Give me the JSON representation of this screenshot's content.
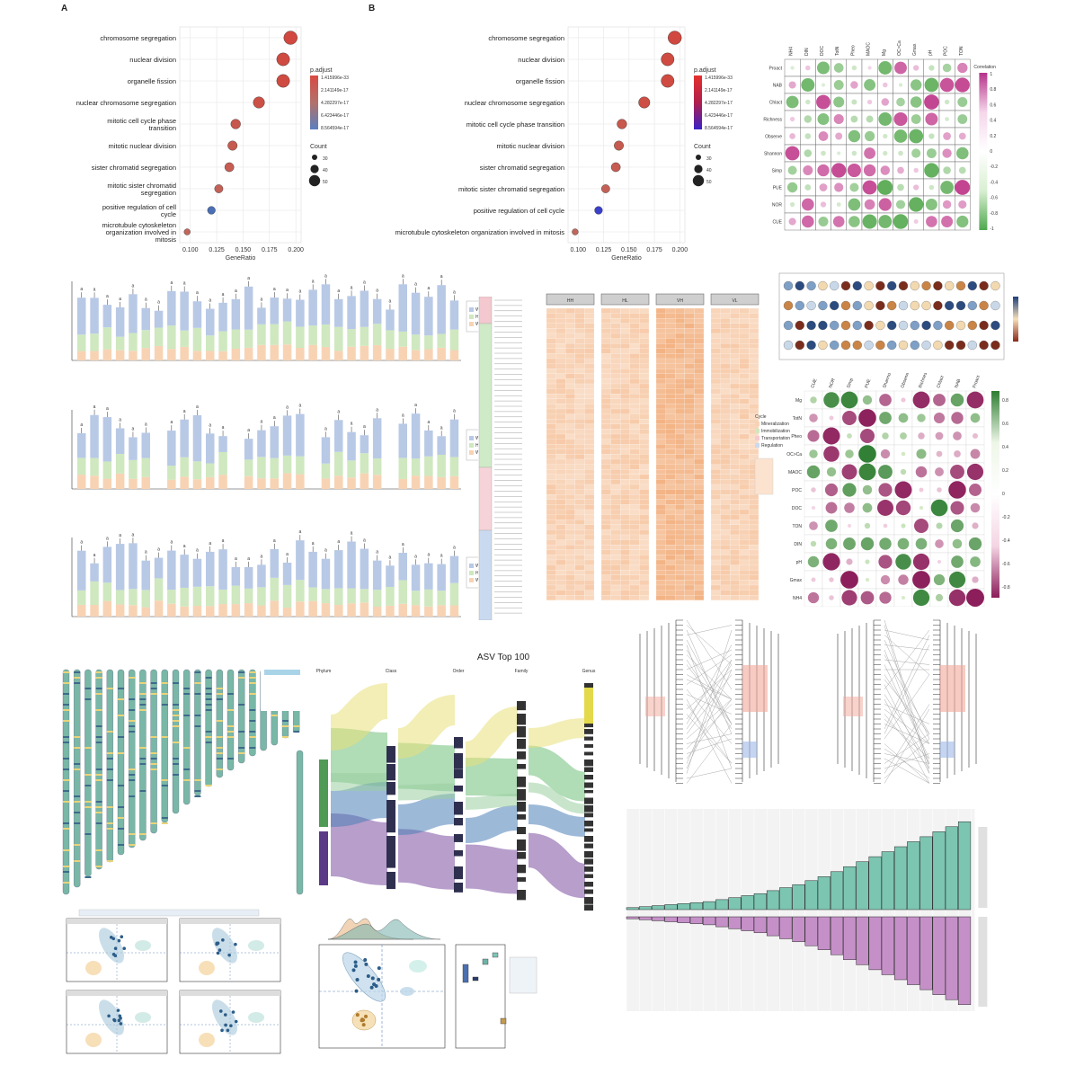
{
  "panels": {
    "a_letter": "A",
    "b_letter": "B"
  },
  "chart_data": [
    {
      "type": "scatter",
      "panel": "A",
      "categories": [
        "chromosome segregation",
        "nuclear division",
        "organelle fission",
        "nuclear chromosome segregation",
        "mitotic cell cycle phase transition",
        "mitotic nuclear division",
        "sister chromatid segregation",
        "mitotic sister chromatid segregation",
        "positive regulation of cell cycle",
        "microtubule cytoskeleton organization involved in mitosis"
      ],
      "category_lines": [
        [
          "chromosome segregation"
        ],
        [
          "nuclear division"
        ],
        [
          "organelle fission"
        ],
        [
          "nuclear chromosome segregation"
        ],
        [
          "mitotic cell cycle phase",
          "transition"
        ],
        [
          "mitotic nuclear division"
        ],
        [
          "sister chromatid segregation"
        ],
        [
          "mitotic sister chromatid",
          "segregation"
        ],
        [
          "positive regulation of cell",
          "cycle"
        ],
        [
          "microtubule cytoskeleton",
          "organization involved in",
          "mitosis"
        ]
      ],
      "x": [
        0.195,
        0.188,
        0.188,
        0.165,
        0.143,
        0.14,
        0.137,
        0.127,
        0.12,
        0.097
      ],
      "count": [
        55,
        53,
        53,
        47,
        41,
        40,
        39,
        36,
        34,
        28
      ],
      "p_color": [
        0.0,
        0.05,
        0.05,
        0.15,
        0.3,
        0.35,
        0.4,
        0.5,
        0.95,
        0.6
      ],
      "xlabel": "GeneRatio",
      "xticks": [
        "0.100",
        "0.125",
        "0.150",
        "0.175",
        "0.200"
      ],
      "xlim": [
        0.09,
        0.205
      ],
      "legend_p_title": "p.adjust",
      "legend_p": [
        "1.415996e-33",
        "2.141149e-17",
        "4.282297e-17",
        "6.423446e-17",
        "8.564594e-17"
      ],
      "legend_count_title": "Count",
      "legend_count": [
        "30",
        "40",
        "50"
      ]
    },
    {
      "type": "scatter",
      "panel": "B",
      "categories": [
        "chromosome segregation",
        "nuclear division",
        "organelle fission",
        "nuclear chromosome segregation",
        "mitotic cell cycle phase transition",
        "mitotic nuclear division",
        "sister chromatid segregation",
        "mitotic sister chromatid segregation",
        "positive regulation of cell cycle",
        "microtubule cytoskeleton organization involved in mitosis"
      ],
      "x": [
        0.195,
        0.188,
        0.188,
        0.165,
        0.143,
        0.14,
        0.137,
        0.127,
        0.12,
        0.097
      ],
      "count": [
        55,
        53,
        53,
        47,
        41,
        40,
        39,
        36,
        34,
        28
      ],
      "p_color": [
        0.0,
        0.05,
        0.05,
        0.15,
        0.3,
        0.35,
        0.4,
        0.5,
        0.95,
        0.6
      ],
      "xlabel": "GeneRatio",
      "xticks": [
        "0.100",
        "0.125",
        "0.150",
        "0.175",
        "0.200"
      ],
      "xlim": [
        0.09,
        0.205
      ],
      "legend_p_title": "p.adjust",
      "legend_p": [
        "1.415996e-33",
        "2.141149e-17",
        "4.282297e-17",
        "6.423446e-17",
        "8.564594e-17"
      ],
      "legend_count_title": "Count",
      "legend_count": [
        "30",
        "40",
        "50"
      ]
    },
    {
      "type": "heatmap",
      "panel": "corr-top",
      "cols": [
        "NH4",
        "DIN",
        "DOC",
        "TotN",
        "Pheo",
        "MAOC",
        "Mg",
        "OC>Ca",
        "Gmax",
        "pH",
        "POC",
        "TON"
      ],
      "rows": [
        "Proact",
        "NAB",
        "Chlact",
        "Richness",
        "Observe",
        "Shannon",
        "Simp",
        "PUE",
        "NOR",
        "CUE"
      ],
      "legend_title": "Correlation",
      "legend_ticks": [
        "1",
        "0.8",
        "0.6",
        "0.4",
        "0.2",
        "0",
        "-0.2",
        "-0.4",
        "-0.6",
        "-0.8",
        "-1"
      ]
    },
    {
      "type": "bar",
      "panel": "stacked-1",
      "n_groups": 30,
      "legend": [
        "Wild",
        "Half",
        "Wrapped"
      ]
    },
    {
      "type": "heatmap",
      "panel": "orange-heatmap",
      "headers": [
        "HH",
        "HL",
        "VH",
        "VL"
      ]
    },
    {
      "type": "heatmap",
      "panel": "corr-bottom",
      "rows": [
        "Mg",
        "TotN",
        "Pheo",
        "OC>Ca",
        "MAOC",
        "POC",
        "DOC",
        "TON",
        "DIN",
        "pH",
        "Gmax",
        "NH4"
      ],
      "cols": [
        "CUE",
        "NOR",
        "Simp",
        "PUE",
        "Shannon",
        "Observe",
        "Richness",
        "Chlact",
        "NAB",
        "Proact"
      ],
      "cycle_legend_title": "Cycle",
      "cycle_legend": [
        "Mineralization",
        "Immobilization",
        "Transportation",
        "Regulation"
      ],
      "legend_ticks": [
        "0.8",
        "0.6",
        "0.4",
        "0.2",
        "0",
        "-0.2",
        "-0.4",
        "-0.6",
        "-0.8"
      ]
    },
    {
      "type": "bar",
      "panel": "sankey",
      "title": "ASV Top 100",
      "levels": [
        "Phylum",
        "Class",
        "Order",
        "Family",
        "Genus"
      ]
    },
    {
      "type": "bar",
      "panel": "mirror-bars",
      "top_values": [
        2,
        3,
        4,
        5,
        6,
        7,
        8,
        10,
        12,
        14,
        16,
        19,
        22,
        25,
        29,
        33,
        38,
        43,
        48,
        53,
        58,
        63,
        68,
        73,
        78,
        83,
        88
      ],
      "bottom_values": [
        2,
        3,
        4,
        5,
        6,
        7,
        8,
        10,
        12,
        14,
        16,
        19,
        22,
        25,
        29,
        33,
        38,
        43,
        48,
        53,
        58,
        63,
        68,
        73,
        78,
        83,
        88
      ]
    }
  ]
}
